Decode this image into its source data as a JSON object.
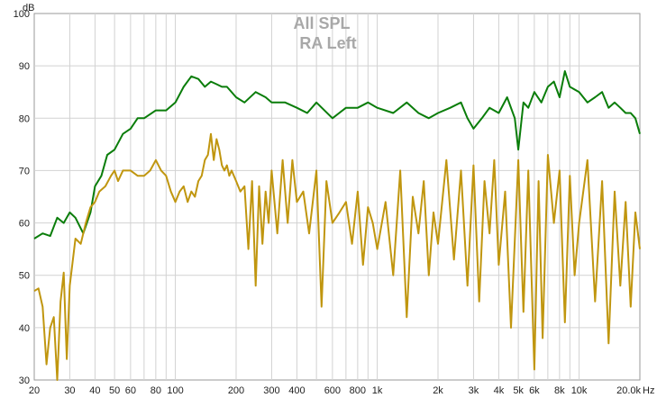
{
  "chart_data": {
    "type": "line",
    "title": "All SPL",
    "subtitle": "RA Left",
    "ylabel": "dB",
    "xunit": "Hz",
    "xscale": "log",
    "xlim": [
      20,
      20000
    ],
    "ylim": [
      30,
      100
    ],
    "grid": true,
    "legend": "none",
    "yticks": [
      {
        "value": 30,
        "label": "30"
      },
      {
        "value": 40,
        "label": "40"
      },
      {
        "value": 50,
        "label": "50"
      },
      {
        "value": 60,
        "label": "60"
      },
      {
        "value": 70,
        "label": "70"
      },
      {
        "value": 80,
        "label": "80"
      },
      {
        "value": 90,
        "label": "90"
      },
      {
        "value": 100,
        "label": "100"
      }
    ],
    "xticks": [
      {
        "value": 20,
        "label": "20"
      },
      {
        "value": 30,
        "label": "30"
      },
      {
        "value": 40,
        "label": "40"
      },
      {
        "value": 50,
        "label": "50"
      },
      {
        "value": 60,
        "label": "60"
      },
      {
        "value": 80,
        "label": "80"
      },
      {
        "value": 100,
        "label": "100"
      },
      {
        "value": 200,
        "label": "200"
      },
      {
        "value": 300,
        "label": "300"
      },
      {
        "value": 400,
        "label": "400"
      },
      {
        "value": 600,
        "label": "600"
      },
      {
        "value": 800,
        "label": "800"
      },
      {
        "value": 1000,
        "label": "1k"
      },
      {
        "value": 2000,
        "label": "2k"
      },
      {
        "value": 3000,
        "label": "3k"
      },
      {
        "value": 4000,
        "label": "4k"
      },
      {
        "value": 5000,
        "label": "5k"
      },
      {
        "value": 6000,
        "label": "6k"
      },
      {
        "value": 8000,
        "label": "8k"
      },
      {
        "value": 10000,
        "label": "10k"
      },
      {
        "value": 20000,
        "label": "20.0k"
      }
    ],
    "series": [
      {
        "color": "#0a7d0a",
        "x": [
          20,
          22,
          24,
          26,
          28,
          30,
          32,
          35,
          38,
          40,
          43,
          46,
          50,
          55,
          60,
          65,
          70,
          80,
          90,
          100,
          110,
          120,
          130,
          140,
          150,
          160,
          170,
          180,
          200,
          220,
          250,
          280,
          300,
          350,
          400,
          450,
          500,
          600,
          700,
          800,
          900,
          1000,
          1200,
          1400,
          1600,
          1800,
          2000,
          2300,
          2600,
          2800,
          3000,
          3300,
          3600,
          4000,
          4400,
          4800,
          5000,
          5300,
          5600,
          6000,
          6500,
          7000,
          7500,
          8000,
          8500,
          9000,
          10000,
          11000,
          12000,
          13000,
          14000,
          15000,
          16000,
          17000,
          18000,
          19000,
          20000
        ],
        "y": [
          57,
          58,
          57.5,
          61,
          60,
          62,
          61,
          58,
          62,
          67,
          69,
          73,
          74,
          77,
          78,
          80,
          80,
          81.5,
          81.5,
          83,
          86,
          88,
          87.5,
          86,
          87,
          86.5,
          86,
          86,
          84,
          83,
          85,
          84,
          83,
          83,
          82,
          81,
          83,
          80,
          82,
          82,
          83,
          82,
          81,
          83,
          81,
          80,
          81,
          82,
          83,
          80,
          78,
          80,
          82,
          81,
          84,
          80,
          74,
          83,
          82,
          85,
          83,
          86,
          87,
          84,
          89,
          86,
          85,
          83,
          84,
          85,
          82,
          83,
          82,
          81,
          81,
          80,
          77
        ]
      },
      {
        "color": "#c0960f",
        "x": [
          20,
          21,
          22,
          23,
          24,
          25,
          26,
          27,
          28,
          29,
          30,
          32,
          34,
          36,
          38,
          40,
          42,
          45,
          48,
          50,
          52,
          55,
          58,
          60,
          65,
          70,
          75,
          80,
          85,
          90,
          95,
          100,
          105,
          110,
          115,
          120,
          125,
          130,
          135,
          140,
          145,
          150,
          155,
          160,
          165,
          170,
          175,
          180,
          185,
          190,
          200,
          210,
          220,
          230,
          240,
          250,
          260,
          270,
          280,
          290,
          300,
          320,
          340,
          360,
          380,
          400,
          430,
          460,
          500,
          530,
          560,
          600,
          650,
          700,
          750,
          800,
          850,
          900,
          950,
          1000,
          1100,
          1200,
          1300,
          1400,
          1500,
          1600,
          1700,
          1800,
          1900,
          2000,
          2200,
          2400,
          2600,
          2800,
          3000,
          3200,
          3400,
          3600,
          3800,
          4000,
          4300,
          4600,
          5000,
          5300,
          5600,
          6000,
          6300,
          6600,
          7000,
          7500,
          8000,
          8500,
          9000,
          9500,
          10000,
          11000,
          12000,
          13000,
          14000,
          15000,
          16000,
          17000,
          18000,
          19000,
          20000
        ],
        "y": [
          47,
          47.5,
          44,
          33,
          40,
          42,
          30,
          45,
          50.5,
          34,
          48,
          57,
          56,
          60,
          63,
          64,
          66,
          67,
          69,
          70,
          68,
          70,
          70,
          70,
          69,
          69,
          70,
          72,
          70,
          69,
          66,
          64,
          66,
          67,
          64,
          66,
          65,
          68,
          69,
          72,
          73,
          77,
          72,
          76,
          74,
          71,
          70,
          71,
          69,
          70,
          68,
          66,
          67,
          55,
          68,
          48,
          67,
          56,
          66,
          60,
          70,
          58,
          72,
          60,
          72,
          64,
          66,
          58,
          70,
          44,
          68,
          60,
          62,
          64,
          56,
          66,
          52,
          63,
          60,
          55,
          64,
          50,
          70,
          42,
          65,
          58,
          68,
          50,
          62,
          56,
          72,
          53,
          70,
          48,
          71,
          45,
          68,
          58,
          72,
          52,
          66,
          40,
          72,
          43,
          70,
          32,
          68,
          38,
          73,
          60,
          70,
          41,
          69,
          50,
          60,
          72,
          45,
          68,
          37,
          66,
          48,
          64,
          44,
          62,
          55
        ]
      }
    ]
  }
}
